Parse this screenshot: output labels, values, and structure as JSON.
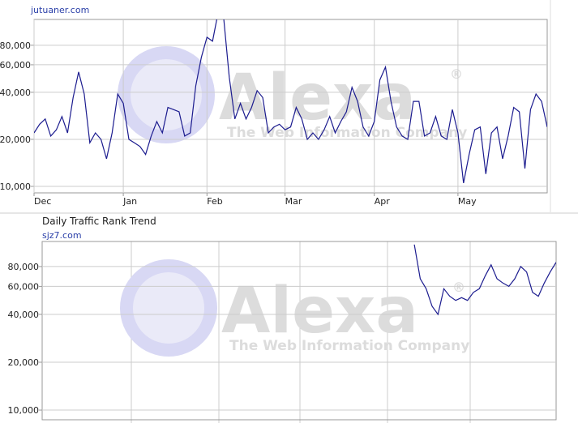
{
  "chart_data": [
    {
      "type": "line",
      "title": "Daily Traffic Rank Trend",
      "subtitle": "jutuaner.com",
      "watermark": "Alexa",
      "watermark_tagline": "The Web Information Company",
      "watermark_mark": "®",
      "categories": [
        "Dec",
        null,
        null,
        null,
        null,
        null,
        null,
        null,
        null,
        null,
        null,
        null,
        null,
        null,
        null,
        null,
        "Jan",
        null,
        null,
        null,
        null,
        null,
        null,
        null,
        null,
        null,
        null,
        null,
        null,
        null,
        null,
        "Feb",
        null,
        null,
        null,
        null,
        null,
        null,
        null,
        null,
        null,
        null,
        null,
        null,
        null,
        "Mar",
        null,
        null,
        null,
        null,
        null,
        null,
        null,
        null,
        null,
        null,
        null,
        null,
        null,
        null,
        null,
        "Apr",
        null,
        null,
        null,
        null,
        null,
        null,
        null,
        null,
        null,
        null,
        null,
        null,
        null,
        null,
        "May",
        null,
        null,
        null,
        null,
        null,
        null,
        null,
        null,
        null,
        null,
        null,
        null,
        null,
        null,
        null,
        null
      ],
      "series": [
        {
          "name": "jutuaner.com",
          "color": "#1c1c8f",
          "values": [
            22000,
            25000,
            27000,
            21000,
            23000,
            28000,
            22000,
            37000,
            54000,
            39000,
            19000,
            22000,
            20000,
            15000,
            22000,
            39000,
            34000,
            20000,
            19000,
            18000,
            16000,
            21000,
            26000,
            22000,
            32000,
            31000,
            30000,
            21000,
            22000,
            44000,
            67000,
            90000,
            85000,
            130000,
            120000,
            50000,
            27000,
            34000,
            27000,
            32000,
            41000,
            37000,
            22000,
            24000,
            25000,
            23000,
            24000,
            32000,
            27000,
            20000,
            22000,
            20000,
            23000,
            28000,
            22000,
            26000,
            30000,
            43000,
            35000,
            24000,
            21000,
            26000,
            48000,
            58000,
            35000,
            24000,
            21000,
            20000,
            35000,
            35000,
            21000,
            22000,
            28000,
            21000,
            20000,
            31000,
            22000,
            10500,
            16000,
            23000,
            24000,
            12000,
            22000,
            24000,
            15000,
            21000,
            32000,
            30000,
            13000,
            31000,
            39000,
            35000,
            24000
          ]
        }
      ],
      "yscale": "log",
      "ylim": [
        9090,
        117000
      ],
      "yticks": [
        {
          "value": 10000,
          "label": "10,000"
        },
        {
          "value": 20000,
          "label": "20,000"
        },
        {
          "value": 40000,
          "label": "40,000"
        },
        {
          "value": 60000,
          "label": "60,000"
        },
        {
          "value": 80000,
          "label": "80,000"
        }
      ],
      "grid": true
    },
    {
      "type": "line",
      "title": "Daily Traffic Rank Trend",
      "subtitle": "sjz7.com",
      "watermark": "Alexa",
      "watermark_tagline": "The Web Information Company",
      "watermark_mark": "®",
      "categories": [
        null,
        null,
        null,
        null,
        null,
        null,
        null,
        null,
        null,
        null,
        null,
        null,
        null,
        null,
        null,
        null,
        null,
        null,
        null,
        null,
        null,
        null,
        null,
        null,
        null,
        null,
        null,
        null,
        null,
        null,
        null,
        null,
        null,
        null,
        null,
        null,
        null,
        null,
        null,
        null,
        null,
        null,
        null,
        null,
        null,
        null,
        null,
        null,
        null,
        null,
        null,
        null,
        null,
        null,
        null,
        null,
        null,
        null,
        null,
        null,
        null,
        null,
        null,
        null,
        null,
        null,
        null,
        null,
        null,
        null,
        null,
        null,
        null,
        null,
        null,
        null,
        null,
        null,
        null,
        null,
        null,
        null,
        null,
        null,
        null,
        null,
        null,
        null
      ],
      "series": [
        {
          "name": "sjz7.com",
          "color": "#1c1c8f",
          "values": [
            null,
            null,
            null,
            null,
            null,
            null,
            null,
            null,
            null,
            null,
            null,
            null,
            null,
            null,
            null,
            null,
            null,
            null,
            null,
            null,
            null,
            null,
            null,
            null,
            null,
            null,
            null,
            null,
            null,
            null,
            null,
            null,
            null,
            null,
            null,
            null,
            null,
            null,
            null,
            null,
            null,
            null,
            null,
            null,
            null,
            null,
            null,
            null,
            null,
            null,
            null,
            null,
            null,
            null,
            null,
            null,
            null,
            null,
            null,
            null,
            null,
            null,
            null,
            110000,
            67000,
            58000,
            45000,
            40000,
            58000,
            52000,
            49000,
            51000,
            49000,
            55000,
            58000,
            70000,
            82000,
            67000,
            63000,
            60000,
            67000,
            80000,
            74000,
            55000,
            52000,
            63000,
            74000,
            85000
          ]
        }
      ],
      "yscale": "log",
      "ylim": [
        8690,
        115000
      ],
      "yticks": [
        {
          "value": 10000,
          "label": "10,000"
        },
        {
          "value": 20000,
          "label": "20,000"
        },
        {
          "value": 40000,
          "label": "40,000"
        },
        {
          "value": 60000,
          "label": "60,000"
        },
        {
          "value": 80000,
          "label": "80,000"
        }
      ],
      "grid": true
    }
  ]
}
